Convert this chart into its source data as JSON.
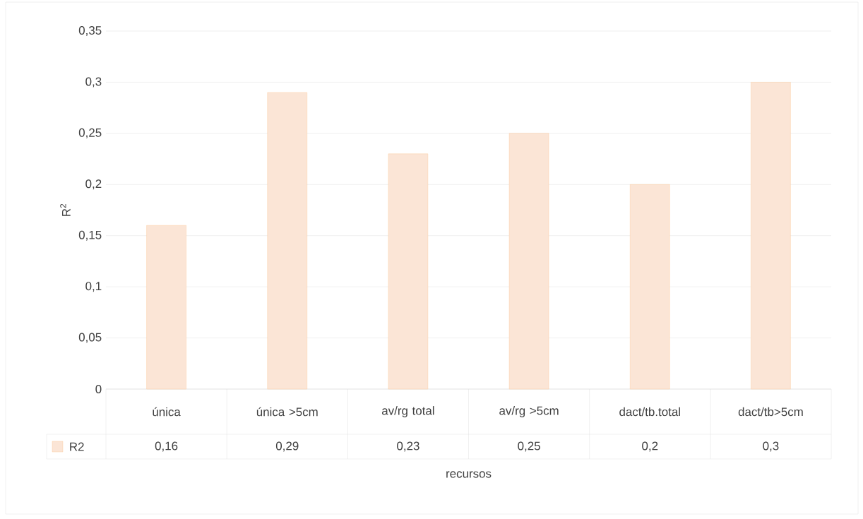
{
  "chart_data": {
    "type": "bar",
    "categories": [
      "única",
      "única >5cm",
      "av/rg total",
      "av/rg >5cm",
      "dact/tb.total",
      "dact/tb>5cm"
    ],
    "series": [
      {
        "name": "R2",
        "color": "#fbe5d6",
        "values": [
          0.16,
          0.29,
          0.23,
          0.25,
          0.2,
          0.3
        ],
        "value_labels": [
          "0,16",
          "0,29",
          "0,23",
          "0,25",
          "0,2",
          "0,3"
        ]
      }
    ],
    "xlabel": "recursos",
    "ylabel": "R$^{2}$",
    "ylim": [
      0,
      0.35
    ],
    "yticks": [
      0,
      {
        "value": 0.05,
        "label": "0,05"
      },
      {
        "value": 0.1,
        "label": "0,1"
      },
      {
        "value": 0.15,
        "label": "0,15"
      },
      {
        "value": 0.2,
        "label": "0,2"
      },
      {
        "value": 0.25,
        "label": "0,25"
      },
      {
        "value": 0.3,
        "label": "0,3"
      },
      {
        "value": 0.35,
        "label": "0,35"
      }
    ],
    "grid": "y",
    "legend": "bottom"
  }
}
